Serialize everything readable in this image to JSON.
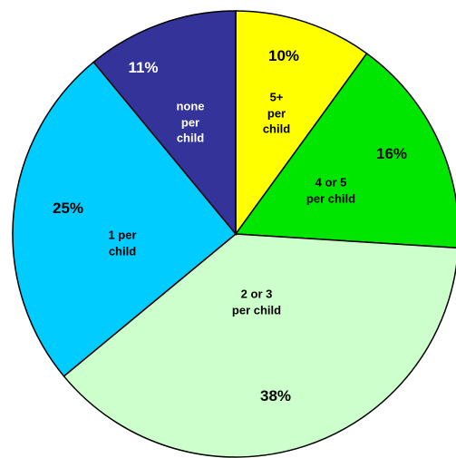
{
  "chart_data": {
    "type": "pie",
    "categories": [
      "5+\nper\nchild",
      "4 or 5\nper child",
      "2 or 3\nper child",
      "1 per\nchild",
      "none\nper\nchild"
    ],
    "values": [
      10,
      16,
      38,
      25,
      11
    ],
    "value_labels": [
      "10%",
      "16%",
      "38%",
      "25%",
      "11%"
    ],
    "colors": [
      "#ffff00",
      "#00e600",
      "#ccffcc",
      "#00ccff",
      "#333399"
    ],
    "label_colors": [
      "#000000",
      "#000000",
      "#000000",
      "#000000",
      "#ffffff"
    ]
  }
}
